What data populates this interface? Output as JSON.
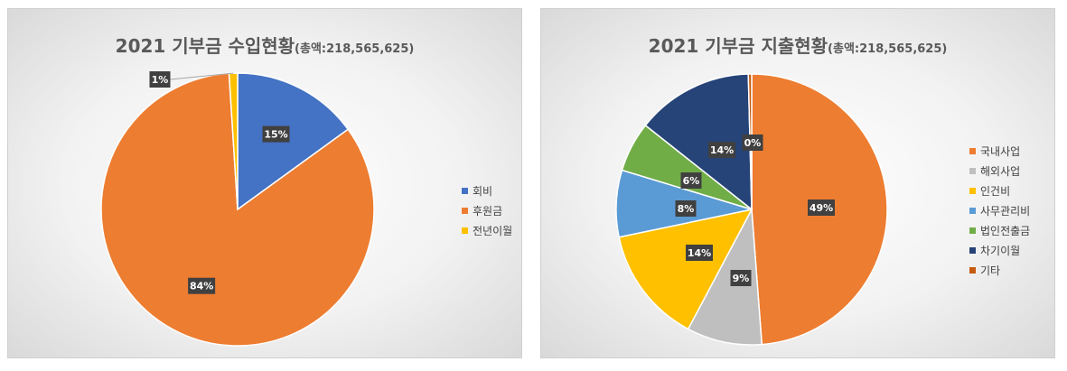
{
  "chart_data": [
    {
      "type": "pie",
      "title": "2021 기부금 수입현황",
      "subtitle": "(총액:218,565,625)",
      "categories": [
        "회비",
        "후원금",
        "전년이월"
      ],
      "values": [
        15,
        84,
        1
      ],
      "data_labels": [
        "15%",
        "84%",
        "1%"
      ],
      "colors": [
        "#4472C4",
        "#ED7D31",
        "#FFC000"
      ],
      "legend_position": "right"
    },
    {
      "type": "pie",
      "title": "2021 기부금 지출현황",
      "subtitle": "(총액:218,565,625)",
      "categories": [
        "국내사업",
        "해외사업",
        "인건비",
        "사무관리비",
        "법인전출금",
        "차기이월",
        "기타"
      ],
      "values": [
        49,
        9,
        14,
        8,
        6,
        14,
        0.4
      ],
      "data_labels": [
        "49%",
        "9%",
        "14%",
        "8%",
        "6%",
        "14%",
        "0%"
      ],
      "colors": [
        "#ED7D31",
        "#BFBFBF",
        "#FFC000",
        "#5B9BD5",
        "#70AD47",
        "#264478",
        "#C55A11"
      ],
      "legend_position": "right"
    }
  ]
}
